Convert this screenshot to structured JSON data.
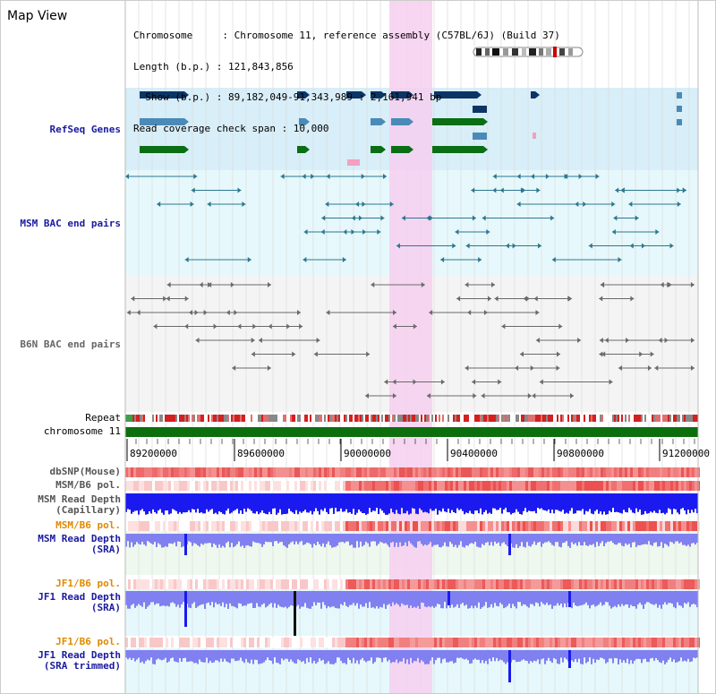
{
  "header": {
    "title": "Map View",
    "info_lines": [
      "Chromosome     : Chromosome 11, reference assembly (C57BL/6J) (Build 37)",
      "Length (b.p.) : 121,843,856",
      "  Show (b.p.) : 89,182,049-91,343,989 : 2,161,941 bp",
      "Read coverage check span : 10,000"
    ]
  },
  "tracks": {
    "refseq": "RefSeq Genes",
    "msm_bac": "MSM BAC end pairs",
    "b6n_bac": "B6N BAC end pairs",
    "repeat": "Repeat",
    "chromosome": "chromosome 11",
    "dbsnp": "dbSNP(Mouse)",
    "msm_b6_pol_1": "MSM/B6 pol.",
    "msm_depth_cap_1": "MSM Read Depth",
    "msm_depth_cap_2": "(Capillary)",
    "msm_b6_pol_2": "MSM/B6 pol.",
    "msm_depth_sra_1": "MSM Read Depth",
    "msm_depth_sra_2": "(SRA)",
    "jf1_b6_pol_1": "JF1/B6 pol.",
    "jf1_depth_sra_1": "JF1 Read Depth",
    "jf1_depth_sra_2": "(SRA)",
    "jf1_b6_pol_2": "JF1/B6 pol.",
    "jf1_depth_trim_1": "JF1 Read Depth",
    "jf1_depth_trim_2": "(SRA trimmed)"
  },
  "scale": {
    "ticks": [
      "89200000",
      "89600000",
      "90000000",
      "90400000",
      "90800000",
      "91200000"
    ]
  },
  "colors": {
    "refseq_bg": "#d8eef8",
    "bac_bg": "#e6f8fb",
    "b6n_bg": "#f4f4f4",
    "highlight": "#f6cff0",
    "gene_dark": "#0c3566",
    "gene_mid": "#4a8ab8",
    "gene_green": "#0a6e14",
    "msm_line": "#2b7790",
    "b6n_line": "#6a6a6a",
    "chromosome_bar": "#0d6e0d",
    "label_blue": "#1a1aa0",
    "label_orange": "#e08a00",
    "label_gray": "#555555",
    "depth_blue": "#1a1af0",
    "depth_light": "#8080f0"
  }
}
